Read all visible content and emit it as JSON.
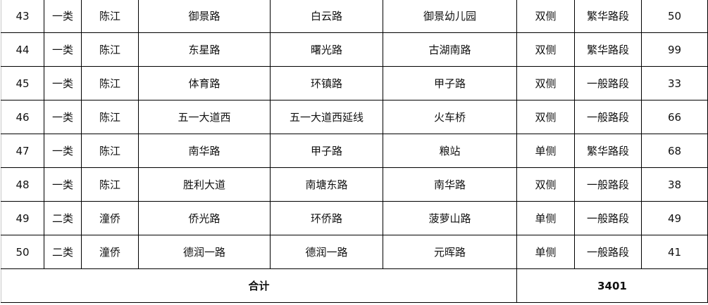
{
  "rows": [
    [
      "43",
      "一类",
      "陈江",
      "御景路",
      "白云路",
      "御景幼儿园",
      "双侧",
      "繁华路段",
      "50"
    ],
    [
      "44",
      "一类",
      "陈江",
      "东星路",
      "曙光路",
      "古湖南路",
      "双侧",
      "繁华路段",
      "99"
    ],
    [
      "45",
      "一类",
      "陈江",
      "体育路",
      "环镇路",
      "甲子路",
      "双侧",
      "一般路段",
      "33"
    ],
    [
      "46",
      "一类",
      "陈江",
      "五一大道西",
      "五一大道西延线",
      "火车桥",
      "双侧",
      "一般路段",
      "66"
    ],
    [
      "47",
      "一类",
      "陈江",
      "南华路",
      "甲子路",
      "粮站",
      "单侧",
      "繁华路段",
      "68"
    ],
    [
      "48",
      "一类",
      "陈江",
      "胜利大道",
      "南塘东路",
      "南华路",
      "双侧",
      "一般路段",
      "38"
    ],
    [
      "49",
      "二类",
      "潼侨",
      "侨光路",
      "环侨路",
      "菠萝山路",
      "单侧",
      "一般路段",
      "49"
    ],
    [
      "50",
      "二类",
      "潼侨",
      "德润一路",
      "德润一路",
      "元晖路",
      "单侧",
      "一般路段",
      "41"
    ]
  ],
  "total": {
    "label": "合计",
    "value": "3401"
  }
}
